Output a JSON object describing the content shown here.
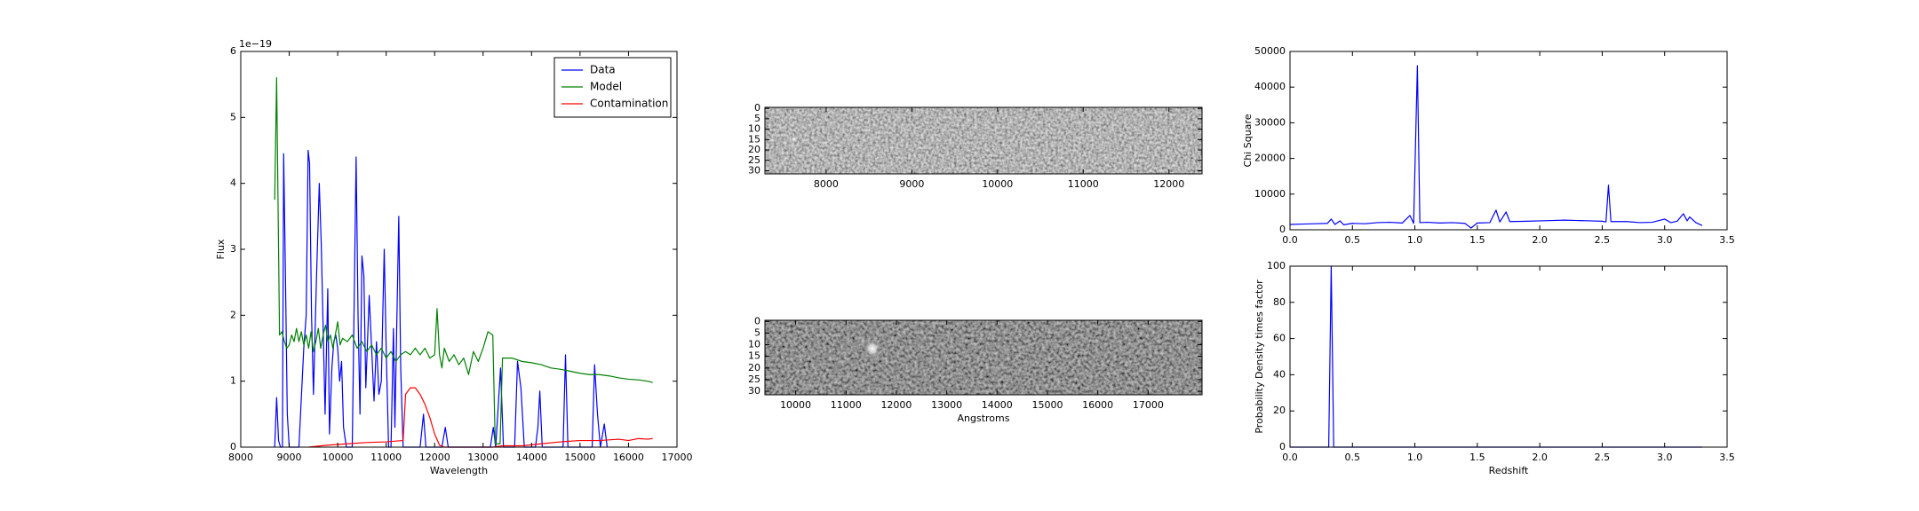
{
  "chart_data": [
    {
      "type": "line",
      "xlabel": "Wavelength",
      "ylabel": "Flux",
      "offset_text": "1e−19",
      "xlim": [
        8000,
        17000
      ],
      "ylim": [
        0,
        6
      ],
      "xticks": [
        8000,
        9000,
        10000,
        11000,
        12000,
        13000,
        14000,
        15000,
        16000,
        17000
      ],
      "yticks": [
        0,
        1,
        2,
        3,
        4,
        5,
        6
      ],
      "legend": "upper right",
      "series": [
        {
          "name": "Data",
          "color": "#0000ff",
          "x": [
            8700,
            8740,
            8780,
            8820,
            8860,
            8885,
            8920,
            8960,
            9000,
            9200,
            9300,
            9350,
            9390,
            9420,
            9460,
            9500,
            9560,
            9620,
            9660,
            9700,
            9740,
            9795,
            9830,
            9880,
            9920,
            9960,
            10000,
            10040,
            10080,
            10120,
            10180,
            10300,
            10380,
            10420,
            10460,
            10500,
            10540,
            10580,
            10650,
            10700,
            10750,
            10800,
            10850,
            10900,
            10960,
            11000,
            11050,
            11100,
            11150,
            11180,
            11260,
            11300,
            11350,
            11700,
            11770,
            11820,
            12150,
            12220,
            12280,
            13150,
            13210,
            13260,
            13360,
            13420,
            13650,
            13710,
            13780,
            13850,
            14080,
            14130,
            14170,
            14220,
            14650,
            14700,
            14750,
            15250,
            15300,
            15360,
            15420,
            15500,
            15560
          ],
          "values": [
            0,
            0.75,
            0.1,
            0,
            0,
            4.45,
            2.7,
            0.5,
            0,
            0,
            1.5,
            2.0,
            4.5,
            4.3,
            2.0,
            0.8,
            2.5,
            4.0,
            3.1,
            1.8,
            0.5,
            2.4,
            0.2,
            1.2,
            1.6,
            1.7,
            1.5,
            1.0,
            1.3,
            0.3,
            0,
            0,
            4.4,
            2.0,
            0.5,
            2.9,
            2.6,
            0.9,
            2.3,
            1.5,
            0.7,
            1.6,
            0.8,
            1.0,
            3.0,
            1.5,
            0,
            0,
            1.8,
            0.3,
            3.5,
            1.2,
            0,
            0,
            0.5,
            0,
            0,
            0.3,
            0,
            0,
            0.3,
            0,
            1.2,
            0,
            0,
            1.3,
            0.9,
            0,
            0,
            0.3,
            0.85,
            0,
            0,
            1.4,
            0,
            0,
            1.25,
            0.5,
            0,
            0.35,
            0
          ]
        },
        {
          "name": "Model",
          "color": "#008000",
          "x": [
            8700,
            8740,
            8780,
            8800,
            8850,
            8900,
            8950,
            9000,
            9050,
            9100,
            9150,
            9200,
            9250,
            9300,
            9350,
            9400,
            9450,
            9500,
            9550,
            9600,
            9650,
            9700,
            9750,
            9800,
            9850,
            9900,
            9950,
            10000,
            10050,
            10100,
            10200,
            10300,
            10400,
            10500,
            10600,
            10700,
            10800,
            10900,
            11000,
            11100,
            11200,
            11300,
            11400,
            11500,
            11600,
            11700,
            11800,
            11900,
            12000,
            12050,
            12100,
            12150,
            12200,
            12300,
            12400,
            12500,
            12600,
            12700,
            12800,
            12900,
            13000,
            13100,
            13200,
            13250,
            13350,
            13400,
            13600,
            13800,
            14000,
            14200,
            14400,
            14600,
            14800,
            15000,
            15200,
            15400,
            15600,
            15800,
            16000,
            16200,
            16400,
            16500
          ],
          "values": [
            3.75,
            5.6,
            3.0,
            1.7,
            1.75,
            1.6,
            1.5,
            1.55,
            1.7,
            1.6,
            1.8,
            1.6,
            1.75,
            1.55,
            1.7,
            1.5,
            1.75,
            1.45,
            1.6,
            1.8,
            1.5,
            1.7,
            1.85,
            1.6,
            1.7,
            1.5,
            1.7,
            1.9,
            1.55,
            1.65,
            1.6,
            1.7,
            1.5,
            1.6,
            1.45,
            1.55,
            1.4,
            1.5,
            1.35,
            1.45,
            1.3,
            1.4,
            1.45,
            1.4,
            1.5,
            1.4,
            1.5,
            1.35,
            1.4,
            2.1,
            1.4,
            1.2,
            1.5,
            1.3,
            1.4,
            1.25,
            1.35,
            1.1,
            1.45,
            1.3,
            1.5,
            1.75,
            1.7,
            0.05,
            0.05,
            1.35,
            1.35,
            1.3,
            1.28,
            1.25,
            1.2,
            1.18,
            1.15,
            1.12,
            1.1,
            1.1,
            1.08,
            1.05,
            1.03,
            1.02,
            1.0,
            0.98
          ]
        },
        {
          "name": "Contamination",
          "color": "#ff0000",
          "x": [
            9400,
            9800,
            10200,
            10600,
            11000,
            11350,
            11400,
            11500,
            11600,
            11700,
            11800,
            11900,
            12000,
            12100,
            12200,
            13200,
            13400,
            13800,
            14200,
            14600,
            15000,
            15400,
            15800,
            16000,
            16200,
            16400,
            16500
          ],
          "values": [
            0,
            0.03,
            0.05,
            0.07,
            0.08,
            0.1,
            0.8,
            0.9,
            0.9,
            0.8,
            0.65,
            0.45,
            0.2,
            0.03,
            0,
            0,
            0.02,
            0.02,
            0.05,
            0.08,
            0.1,
            0.1,
            0.12,
            0.1,
            0.13,
            0.12,
            0.13
          ]
        }
      ]
    },
    {
      "type": "image",
      "xlim": [
        7286,
        12386
      ],
      "ylim": [
        31.5,
        -0.5
      ],
      "xticks": [
        8000,
        9000,
        10000,
        11000,
        12000
      ],
      "yticks": [
        0,
        5,
        10,
        15,
        20,
        25,
        30
      ]
    },
    {
      "type": "image",
      "xlabel": "Angstroms",
      "xlim": [
        9390,
        18070
      ],
      "ylim": [
        31.5,
        -0.5
      ],
      "xticks": [
        10000,
        11000,
        12000,
        13000,
        14000,
        15000,
        16000,
        17000
      ],
      "yticks": [
        0,
        5,
        10,
        15,
        20,
        25,
        30
      ]
    },
    {
      "type": "line",
      "ylabel": "Chi Square",
      "xlim": [
        0,
        3.5
      ],
      "ylim": [
        0,
        50000
      ],
      "xticks": [
        {
          "value": 0,
          "label": "0.0"
        },
        0.5,
        {
          "value": 1,
          "label": "1.0"
        },
        1.5,
        {
          "value": 2,
          "label": "2.0"
        },
        2.5,
        {
          "value": 3,
          "label": "3.0"
        },
        3.5
      ],
      "yticks": [
        0,
        10000,
        20000,
        30000,
        40000,
        50000
      ],
      "series": [
        {
          "color": "#0000ff",
          "x": [
            0,
            0.1,
            0.2,
            0.3,
            0.33,
            0.36,
            0.4,
            0.43,
            0.5,
            0.6,
            0.7,
            0.8,
            0.9,
            0.96,
            0.99,
            1.02,
            1.04,
            1.1,
            1.2,
            1.3,
            1.4,
            1.45,
            1.5,
            1.6,
            1.65,
            1.68,
            1.73,
            1.76,
            1.9,
            2.0,
            2.1,
            2.2,
            2.3,
            2.4,
            2.5,
            2.53,
            2.55,
            2.57,
            2.7,
            2.8,
            2.9,
            3.0,
            3.05,
            3.1,
            3.15,
            3.18,
            3.2,
            3.25,
            3.3
          ],
          "values": [
            1500,
            1600,
            1700,
            1800,
            3000,
            1500,
            2500,
            1400,
            1800,
            1700,
            2000,
            2100,
            1900,
            4000,
            1800,
            46000,
            2000,
            2100,
            1900,
            2000,
            1800,
            500,
            1900,
            2000,
            5500,
            2200,
            5000,
            2300,
            2400,
            2500,
            2600,
            2700,
            2600,
            2500,
            2400,
            2200,
            12500,
            2300,
            2300,
            2000,
            2100,
            3000,
            2000,
            2400,
            4500,
            2500,
            3600,
            2000,
            1200
          ]
        }
      ]
    },
    {
      "type": "line",
      "xlabel": "Redshift",
      "ylabel": "Probability Density times factor",
      "xlim": [
        0,
        3.5
      ],
      "ylim": [
        0,
        100
      ],
      "xticks": [
        {
          "value": 0,
          "label": "0.0"
        },
        0.5,
        {
          "value": 1,
          "label": "1.0"
        },
        1.5,
        {
          "value": 2,
          "label": "2.0"
        },
        2.5,
        {
          "value": 3,
          "label": "3.0"
        },
        3.5
      ],
      "yticks": [
        0,
        20,
        40,
        60,
        80,
        100
      ],
      "series": [
        {
          "color": "#0000ff",
          "x": [
            0,
            0.31,
            0.33,
            0.35,
            3.3
          ],
          "values": [
            0,
            0,
            100,
            0,
            0
          ]
        }
      ]
    }
  ]
}
